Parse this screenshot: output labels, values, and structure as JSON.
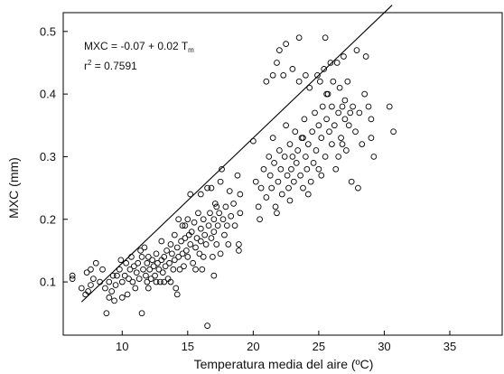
{
  "chart_data": {
    "type": "scatter",
    "xlabel": "Temperatura media del aire (ºC)",
    "ylabel": "MXC (mm)",
    "xlim": [
      5.5,
      39
    ],
    "ylim": [
      0.015,
      0.53
    ],
    "x_ticks": [
      10,
      15,
      20,
      25,
      30,
      35
    ],
    "x_tick_labels": [
      "10",
      "15",
      "20",
      "25",
      "30",
      "35"
    ],
    "y_ticks": [
      0.1,
      0.2,
      0.3,
      0.4,
      0.5
    ],
    "y_tick_labels": [
      "0.1",
      "0.2",
      "0.3",
      "0.4",
      "0.5"
    ],
    "grid": false,
    "regression": {
      "intercept": -0.07,
      "slope": 0.02,
      "x_range": [
        6.9,
        30.6
      ],
      "equation_prefix": "MXC = -0.07 + 0.02 T",
      "equation_subscript": "m",
      "r2_prefix": "r",
      "r2_superscript": "2",
      "r2_value": " = 0.7591"
    },
    "marker": {
      "shape": "open-circle",
      "color": "#000000"
    },
    "points": [
      [
        6.2,
        0.11
      ],
      [
        6.2,
        0.105
      ],
      [
        6.9,
        0.09
      ],
      [
        7.2,
        0.08
      ],
      [
        7.3,
        0.115
      ],
      [
        7.4,
        0.085
      ],
      [
        7.6,
        0.095
      ],
      [
        7.6,
        0.12
      ],
      [
        7.8,
        0.105
      ],
      [
        8.0,
        0.13
      ],
      [
        8.3,
        0.1
      ],
      [
        8.5,
        0.12
      ],
      [
        8.7,
        0.09
      ],
      [
        8.8,
        0.05
      ],
      [
        9.0,
        0.075
      ],
      [
        9.0,
        0.1
      ],
      [
        9.2,
        0.085
      ],
      [
        9.3,
        0.11
      ],
      [
        9.4,
        0.07
      ],
      [
        9.5,
        0.095
      ],
      [
        9.6,
        0.11
      ],
      [
        9.8,
        0.12
      ],
      [
        9.9,
        0.135
      ],
      [
        10.0,
        0.1
      ],
      [
        10.0,
        0.075
      ],
      [
        10.2,
        0.11
      ],
      [
        10.3,
        0.13
      ],
      [
        10.4,
        0.08
      ],
      [
        10.5,
        0.105
      ],
      [
        10.6,
        0.12
      ],
      [
        10.7,
        0.14
      ],
      [
        10.8,
        0.1
      ],
      [
        10.9,
        0.125
      ],
      [
        11.0,
        0.09
      ],
      [
        11.1,
        0.115
      ],
      [
        11.2,
        0.13
      ],
      [
        11.3,
        0.105
      ],
      [
        11.4,
        0.15
      ],
      [
        11.5,
        0.14
      ],
      [
        11.5,
        0.05
      ],
      [
        11.6,
        0.12
      ],
      [
        11.7,
        0.155
      ],
      [
        11.8,
        0.11
      ],
      [
        11.9,
        0.13
      ],
      [
        12.0,
        0.09
      ],
      [
        12.0,
        0.14
      ],
      [
        12.1,
        0.12
      ],
      [
        12.2,
        0.105
      ],
      [
        12.3,
        0.135
      ],
      [
        12.4,
        0.125
      ],
      [
        12.5,
        0.11
      ],
      [
        12.6,
        0.145
      ],
      [
        12.7,
        0.13
      ],
      [
        12.8,
        0.12
      ],
      [
        12.9,
        0.1
      ],
      [
        13.0,
        0.165
      ],
      [
        13.0,
        0.135
      ],
      [
        13.1,
        0.115
      ],
      [
        13.2,
        0.14
      ],
      [
        13.3,
        0.125
      ],
      [
        13.4,
        0.15
      ],
      [
        13.5,
        0.105
      ],
      [
        13.6,
        0.13
      ],
      [
        13.7,
        0.16
      ],
      [
        13.8,
        0.145
      ],
      [
        13.9,
        0.12
      ],
      [
        14.0,
        0.175
      ],
      [
        14.0,
        0.135
      ],
      [
        14.1,
        0.09
      ],
      [
        14.2,
        0.155
      ],
      [
        14.3,
        0.14
      ],
      [
        14.3,
        0.2
      ],
      [
        14.4,
        0.12
      ],
      [
        14.5,
        0.165
      ],
      [
        14.6,
        0.19
      ],
      [
        14.6,
        0.145
      ],
      [
        14.7,
        0.125
      ],
      [
        14.8,
        0.17
      ],
      [
        14.9,
        0.15
      ],
      [
        15.0,
        0.2
      ],
      [
        15.0,
        0.14
      ],
      [
        15.1,
        0.175
      ],
      [
        15.2,
        0.16
      ],
      [
        15.3,
        0.18
      ],
      [
        15.4,
        0.13
      ],
      [
        15.5,
        0.195
      ],
      [
        15.6,
        0.155
      ],
      [
        15.7,
        0.17
      ],
      [
        15.8,
        0.21
      ],
      [
        15.9,
        0.145
      ],
      [
        16.0,
        0.185
      ],
      [
        16.0,
        0.165
      ],
      [
        16.1,
        0.12
      ],
      [
        16.2,
        0.2
      ],
      [
        16.3,
        0.175
      ],
      [
        16.4,
        0.16
      ],
      [
        16.5,
        0.25
      ],
      [
        16.5,
        0.03
      ],
      [
        16.6,
        0.19
      ],
      [
        16.7,
        0.21
      ],
      [
        16.8,
        0.17
      ],
      [
        16.9,
        0.14
      ],
      [
        17.0,
        0.2
      ],
      [
        17.0,
        0.18
      ],
      [
        17.1,
        0.225
      ],
      [
        17.2,
        0.16
      ],
      [
        17.3,
        0.19
      ],
      [
        17.4,
        0.21
      ],
      [
        17.5,
        0.145
      ],
      [
        17.6,
        0.28
      ],
      [
        17.7,
        0.2
      ],
      [
        17.8,
        0.175
      ],
      [
        17.9,
        0.22
      ],
      [
        18.0,
        0.19
      ],
      [
        18.1,
        0.16
      ],
      [
        18.2,
        0.245
      ],
      [
        18.3,
        0.205
      ],
      [
        18.5,
        0.225
      ],
      [
        18.6,
        0.19
      ],
      [
        18.8,
        0.27
      ],
      [
        18.9,
        0.15
      ],
      [
        18.9,
        0.16
      ],
      [
        19.0,
        0.21
      ],
      [
        19.0,
        0.24
      ],
      [
        16.0,
        0.24
      ],
      [
        17.5,
        0.26
      ],
      [
        15.2,
        0.24
      ],
      [
        14.8,
        0.19
      ],
      [
        13.2,
        0.1
      ],
      [
        12.6,
        0.1
      ],
      [
        11.9,
        0.1
      ],
      [
        17.0,
        0.11
      ],
      [
        16.2,
        0.14
      ],
      [
        15.6,
        0.12
      ],
      [
        14.2,
        0.08
      ],
      [
        13.7,
        0.1
      ],
      [
        17.2,
        0.22
      ],
      [
        16.8,
        0.25
      ],
      [
        20.0,
        0.325
      ],
      [
        20.2,
        0.26
      ],
      [
        20.4,
        0.22
      ],
      [
        20.5,
        0.2
      ],
      [
        20.6,
        0.25
      ],
      [
        20.8,
        0.28
      ],
      [
        21.0,
        0.235
      ],
      [
        21.0,
        0.42
      ],
      [
        21.2,
        0.3
      ],
      [
        21.3,
        0.27
      ],
      [
        21.4,
        0.25
      ],
      [
        21.5,
        0.43
      ],
      [
        21.5,
        0.33
      ],
      [
        21.6,
        0.29
      ],
      [
        21.7,
        0.22
      ],
      [
        21.8,
        0.45
      ],
      [
        21.9,
        0.26
      ],
      [
        22.0,
        0.31
      ],
      [
        22.0,
        0.47
      ],
      [
        22.1,
        0.28
      ],
      [
        22.2,
        0.24
      ],
      [
        22.3,
        0.43
      ],
      [
        22.4,
        0.3
      ],
      [
        22.5,
        0.35
      ],
      [
        22.5,
        0.48
      ],
      [
        22.6,
        0.27
      ],
      [
        22.7,
        0.25
      ],
      [
        22.8,
        0.32
      ],
      [
        22.9,
        0.28
      ],
      [
        23.0,
        0.44
      ],
      [
        23.0,
        0.3
      ],
      [
        23.1,
        0.26
      ],
      [
        23.2,
        0.34
      ],
      [
        23.3,
        0.29
      ],
      [
        23.4,
        0.31
      ],
      [
        23.5,
        0.42
      ],
      [
        23.5,
        0.49
      ],
      [
        23.6,
        0.27
      ],
      [
        23.7,
        0.33
      ],
      [
        23.8,
        0.25
      ],
      [
        23.9,
        0.36
      ],
      [
        24.0,
        0.3
      ],
      [
        24.0,
        0.43
      ],
      [
        24.1,
        0.28
      ],
      [
        24.2,
        0.32
      ],
      [
        24.3,
        0.41
      ],
      [
        24.4,
        0.26
      ],
      [
        24.5,
        0.34
      ],
      [
        24.6,
        0.29
      ],
      [
        24.7,
        0.37
      ],
      [
        24.8,
        0.31
      ],
      [
        24.9,
        0.43
      ],
      [
        25.0,
        0.35
      ],
      [
        25.0,
        0.28
      ],
      [
        25.1,
        0.42
      ],
      [
        25.2,
        0.33
      ],
      [
        25.3,
        0.38
      ],
      [
        25.4,
        0.44
      ],
      [
        25.5,
        0.3
      ],
      [
        25.5,
        0.49
      ],
      [
        25.6,
        0.36
      ],
      [
        25.7,
        0.4
      ],
      [
        25.8,
        0.34
      ],
      [
        25.9,
        0.45
      ],
      [
        26.0,
        0.32
      ],
      [
        26.0,
        0.38
      ],
      [
        26.1,
        0.42
      ],
      [
        26.2,
        0.35
      ],
      [
        26.3,
        0.28
      ],
      [
        26.4,
        0.45
      ],
      [
        26.5,
        0.37
      ],
      [
        26.6,
        0.41
      ],
      [
        26.7,
        0.33
      ],
      [
        26.8,
        0.38
      ],
      [
        26.9,
        0.46
      ],
      [
        27.0,
        0.36
      ],
      [
        27.0,
        0.39
      ],
      [
        27.1,
        0.31
      ],
      [
        27.2,
        0.42
      ],
      [
        27.3,
        0.35
      ],
      [
        27.5,
        0.26
      ],
      [
        27.6,
        0.38
      ],
      [
        27.8,
        0.34
      ],
      [
        27.9,
        0.47
      ],
      [
        28.0,
        0.25
      ],
      [
        28.1,
        0.37
      ],
      [
        28.3,
        0.32
      ],
      [
        28.5,
        0.4
      ],
      [
        28.6,
        0.46
      ],
      [
        28.8,
        0.38
      ],
      [
        29.0,
        0.36
      ],
      [
        29.2,
        0.3
      ],
      [
        29.0,
        0.33
      ],
      [
        30.4,
        0.38
      ],
      [
        30.7,
        0.34
      ],
      [
        26.5,
        0.3
      ],
      [
        25.2,
        0.27
      ],
      [
        24.2,
        0.24
      ],
      [
        22.8,
        0.23
      ],
      [
        21.8,
        0.21
      ],
      [
        23.8,
        0.33
      ],
      [
        25.6,
        0.4
      ],
      [
        26.8,
        0.32
      ],
      [
        27.4,
        0.37
      ]
    ]
  }
}
